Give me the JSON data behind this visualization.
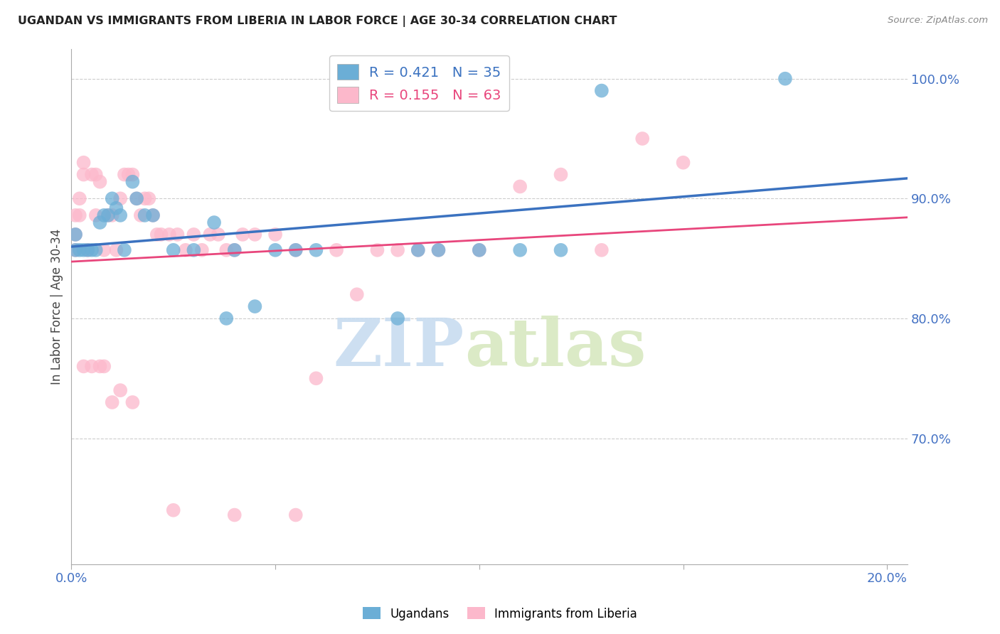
{
  "title": "UGANDAN VS IMMIGRANTS FROM LIBERIA IN LABOR FORCE | AGE 30-34 CORRELATION CHART",
  "source": "Source: ZipAtlas.com",
  "ylabel": "In Labor Force | Age 30-34",
  "legend_blue_label": "Ugandans",
  "legend_pink_label": "Immigrants from Liberia",
  "R_blue": 0.421,
  "N_blue": 35,
  "R_pink": 0.155,
  "N_pink": 63,
  "blue_color": "#6baed6",
  "pink_color": "#fcb8cb",
  "trendline_blue": "#3b72c0",
  "trendline_pink": "#e8467c",
  "watermark_zip": "ZIP",
  "watermark_atlas": "atlas",
  "xmin": 0.0,
  "xmax": 0.205,
  "ymin": 0.595,
  "ymax": 1.025,
  "yticks": [
    0.7,
    0.8,
    0.9,
    1.0
  ],
  "ytick_labels": [
    "70.0%",
    "80.0%",
    "90.0%",
    "100.0%"
  ],
  "xtick_labels": [
    "0.0%",
    "",
    "",
    "",
    "20.0%"
  ],
  "blue_x": [
    0.001,
    0.001,
    0.002,
    0.003,
    0.004,
    0.005,
    0.006,
    0.007,
    0.008,
    0.009,
    0.01,
    0.011,
    0.012,
    0.013,
    0.015,
    0.016,
    0.018,
    0.02,
    0.025,
    0.03,
    0.035,
    0.038,
    0.04,
    0.045,
    0.05,
    0.055,
    0.06,
    0.08,
    0.085,
    0.09,
    0.1,
    0.11,
    0.12,
    0.13,
    0.175
  ],
  "blue_y": [
    0.857,
    0.87,
    0.857,
    0.857,
    0.857,
    0.857,
    0.857,
    0.88,
    0.886,
    0.886,
    0.9,
    0.892,
    0.886,
    0.857,
    0.914,
    0.9,
    0.886,
    0.886,
    0.857,
    0.857,
    0.88,
    0.8,
    0.857,
    0.81,
    0.857,
    0.857,
    0.857,
    0.8,
    0.857,
    0.857,
    0.857,
    0.857,
    0.857,
    0.99,
    1.0
  ],
  "pink_x": [
    0.001,
    0.001,
    0.001,
    0.002,
    0.002,
    0.003,
    0.003,
    0.004,
    0.005,
    0.006,
    0.006,
    0.007,
    0.008,
    0.009,
    0.01,
    0.011,
    0.012,
    0.013,
    0.014,
    0.015,
    0.016,
    0.017,
    0.018,
    0.019,
    0.02,
    0.021,
    0.022,
    0.024,
    0.026,
    0.028,
    0.03,
    0.032,
    0.034,
    0.036,
    0.038,
    0.04,
    0.042,
    0.045,
    0.05,
    0.055,
    0.06,
    0.065,
    0.07,
    0.075,
    0.08,
    0.085,
    0.09,
    0.1,
    0.11,
    0.12,
    0.13,
    0.14,
    0.15,
    0.003,
    0.005,
    0.007,
    0.008,
    0.01,
    0.012,
    0.015,
    0.025,
    0.04,
    0.055
  ],
  "pink_y": [
    0.857,
    0.87,
    0.886,
    0.886,
    0.9,
    0.92,
    0.93,
    0.857,
    0.92,
    0.92,
    0.886,
    0.914,
    0.857,
    0.886,
    0.886,
    0.857,
    0.9,
    0.92,
    0.92,
    0.92,
    0.9,
    0.886,
    0.9,
    0.9,
    0.886,
    0.87,
    0.87,
    0.87,
    0.87,
    0.857,
    0.87,
    0.857,
    0.87,
    0.87,
    0.857,
    0.857,
    0.87,
    0.87,
    0.87,
    0.857,
    0.75,
    0.857,
    0.82,
    0.857,
    0.857,
    0.857,
    0.857,
    0.857,
    0.91,
    0.92,
    0.857,
    0.95,
    0.93,
    0.76,
    0.76,
    0.76,
    0.76,
    0.73,
    0.74,
    0.73,
    0.64,
    0.636,
    0.636
  ]
}
